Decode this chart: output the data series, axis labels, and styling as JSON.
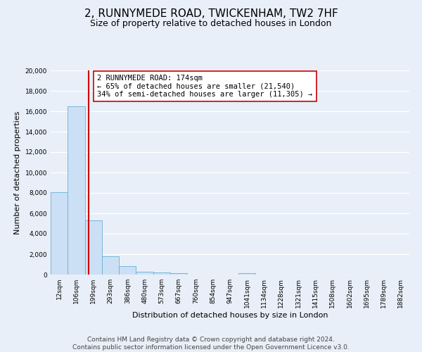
{
  "title": "2, RUNNYMEDE ROAD, TWICKENHAM, TW2 7HF",
  "subtitle": "Size of property relative to detached houses in London",
  "xlabel": "Distribution of detached houses by size in London",
  "ylabel": "Number of detached properties",
  "categories": [
    "12sqm",
    "106sqm",
    "199sqm",
    "293sqm",
    "386sqm",
    "480sqm",
    "573sqm",
    "667sqm",
    "760sqm",
    "854sqm",
    "947sqm",
    "1041sqm",
    "1134sqm",
    "1228sqm",
    "1321sqm",
    "1415sqm",
    "1508sqm",
    "1602sqm",
    "1695sqm",
    "1789sqm",
    "1882sqm"
  ],
  "values": [
    8100,
    16500,
    5300,
    1800,
    800,
    280,
    190,
    120,
    0,
    0,
    0,
    130,
    0,
    0,
    0,
    0,
    0,
    0,
    0,
    0,
    0
  ],
  "bar_color": "#cce0f5",
  "bar_edge_color": "#6aaed6",
  "vline_color": "#cc0000",
  "annotation_title": "2 RUNNYMEDE ROAD: 174sqm",
  "annotation_line1": "← 65% of detached houses are smaller (21,540)",
  "annotation_line2": "34% of semi-detached houses are larger (11,305) →",
  "annotation_box_edge": "#cc0000",
  "ylim": [
    0,
    20000
  ],
  "yticks": [
    0,
    2000,
    4000,
    6000,
    8000,
    10000,
    12000,
    14000,
    16000,
    18000,
    20000
  ],
  "footer_line1": "Contains HM Land Registry data © Crown copyright and database right 2024.",
  "footer_line2": "Contains public sector information licensed under the Open Government Licence v3.0.",
  "bg_color": "#e8eff8",
  "plot_bg_color": "#e8eff8",
  "grid_color": "#ffffff",
  "title_fontsize": 11,
  "subtitle_fontsize": 9,
  "axis_label_fontsize": 8,
  "tick_fontsize": 6.5,
  "annotation_fontsize": 7.5,
  "footer_fontsize": 6.5
}
